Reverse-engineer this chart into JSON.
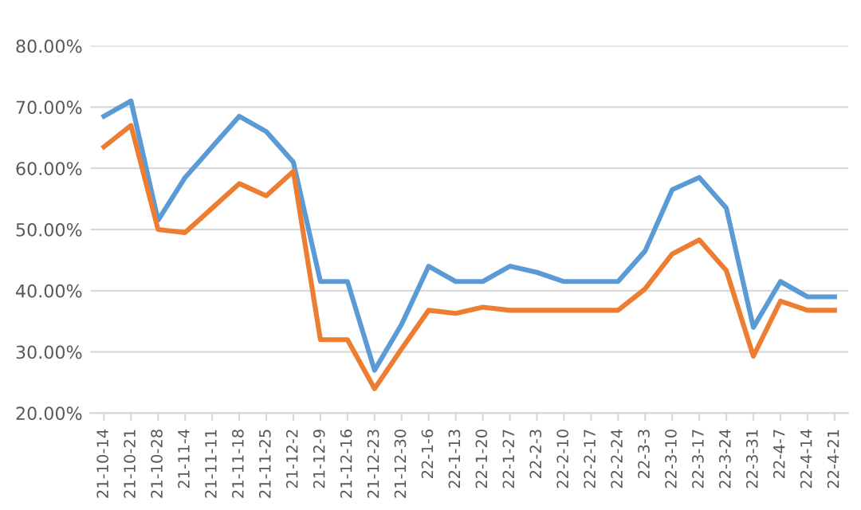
{
  "chart_data": {
    "type": "line",
    "categories": [
      "21-10-14",
      "21-10-21",
      "21-10-28",
      "21-11-4",
      "21-11-11",
      "21-11-18",
      "21-11-25",
      "21-12-2",
      "21-12-9",
      "21-12-16",
      "21-12-23",
      "21-12-30",
      "22-1-6",
      "22-1-13",
      "22-1-20",
      "22-1-27",
      "22-2-3",
      "22-2-10",
      "22-2-17",
      "22-2-24",
      "22-3-3",
      "22-3-10",
      "22-3-17",
      "22-3-24",
      "22-3-31",
      "22-4-7",
      "22-4-14",
      "22-4-21"
    ],
    "series": [
      {
        "color": "#5b9bd5",
        "values": [
          68.5,
          71,
          51.5,
          58.5,
          63.5,
          68.5,
          66,
          61,
          41.5,
          41.5,
          27,
          34.5,
          44,
          41.5,
          41.5,
          44,
          43,
          41.5,
          41.5,
          41.5,
          46.5,
          56.5,
          58.5,
          53.5,
          34,
          41.5,
          39,
          39
        ]
      },
      {
        "color": "#ed7d31",
        "values": [
          63.5,
          67,
          50,
          49.5,
          53.5,
          57.5,
          55.5,
          59.5,
          32,
          32,
          24,
          30.5,
          36.8,
          36.3,
          37.3,
          36.8,
          36.8,
          36.8,
          36.8,
          36.8,
          40.3,
          46,
          48.3,
          43.3,
          29.3,
          38.3,
          36.8,
          36.8
        ]
      }
    ],
    "ylim": [
      20,
      80
    ],
    "yticks": [
      {
        "value": 20,
        "label": "20.00%"
      },
      {
        "value": 30,
        "label": "30.00%"
      },
      {
        "value": 40,
        "label": "40.00%"
      },
      {
        "value": 50,
        "label": "50.00%"
      },
      {
        "value": 60,
        "label": "60.00%"
      },
      {
        "value": 70,
        "label": "70.00%"
      },
      {
        "value": 80,
        "label": "80.00%"
      }
    ],
    "grid": "y",
    "marker": "none",
    "line_style": "solid"
  }
}
